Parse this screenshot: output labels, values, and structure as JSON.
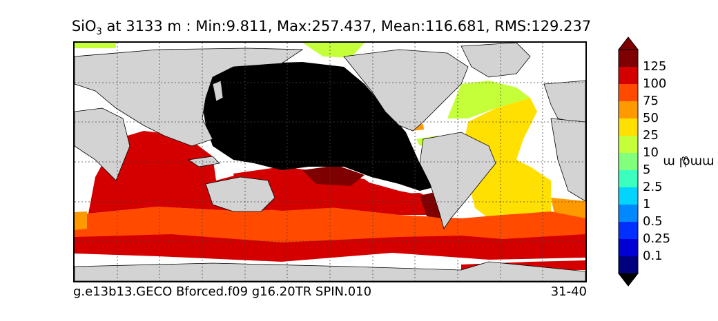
{
  "title": {
    "prefix": "SiO",
    "subscript": "3",
    "text": " at 3133 m : Min:9.811, Max:257.437, Mean:116.681, RMS:129.237"
  },
  "footer": {
    "run_name": "g.e13b13.GECO Bforced.f09 g16.20TR SPIN.010",
    "years": "31-40"
  },
  "colorbar": {
    "unit": "mmol m",
    "unit_exponent": "−3",
    "ticks": [
      "125",
      "100",
      "75",
      "50",
      "25",
      "10",
      "5",
      "2.5",
      "1",
      "0.5",
      "0.25",
      "0.1"
    ],
    "colors_top_to_bottom": [
      "#7f0000",
      "#d40000",
      "#ff4a00",
      "#ff9900",
      "#ffe000",
      "#c4ff3a",
      "#82ff7c",
      "#3affbf",
      "#00d4ff",
      "#0088ff",
      "#0030ff",
      "#0000d4",
      "#00007f"
    ]
  },
  "map": {
    "land_color": "#d3d3d3",
    "missing_color": "#000000",
    "no_data_color": "#ffffff"
  }
}
